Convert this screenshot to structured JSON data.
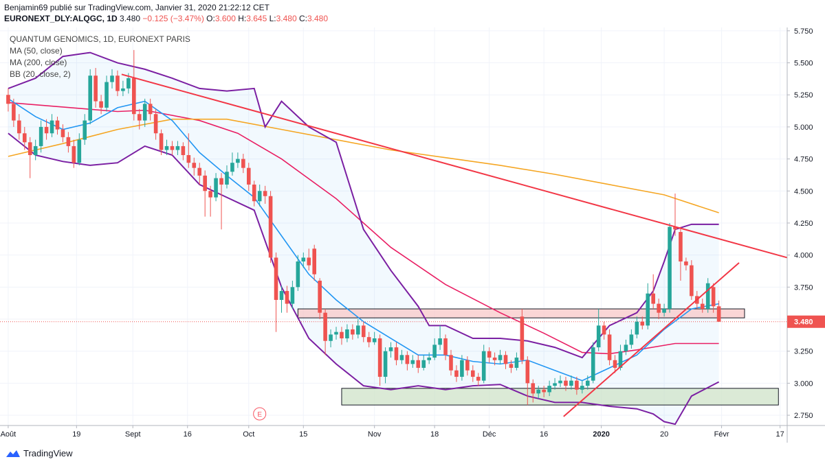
{
  "header": {
    "publisher": "Benjamin69 publié sur TradingView.com, Janvier 31, 2020 21:22:12 CET",
    "symbol": "EURONEXT_DLY:ALQGC, 1D",
    "last": "3.480",
    "change": "−0.125 (−3.47%)",
    "ohlc": [
      {
        "label": "O:",
        "value": "3.600"
      },
      {
        "label": "H:",
        "value": "3.645"
      },
      {
        "label": "L:",
        "value": "3.480"
      },
      {
        "label": "C:",
        "value": "3.480"
      }
    ]
  },
  "footer": {
    "brand": "TradingView"
  },
  "chart_data": {
    "type": "candlestick",
    "legend": [
      "QUANTUM GENOMICS, 1D, EURONEXT PARIS",
      "MA (50, close)",
      "MA (200, close)",
      "BB (20, close, 2)"
    ],
    "up_color": "#26a69a",
    "down_color": "#ef5350",
    "xlim": [
      -1.5,
      142.5
    ],
    "ylim": [
      2.67,
      5.776
    ],
    "xticks": [
      {
        "value": 0,
        "label": "Août"
      },
      {
        "value": 12.5,
        "label": "19"
      },
      {
        "value": 22.8,
        "label": "Sept"
      },
      {
        "value": 32.8,
        "label": "16"
      },
      {
        "value": 44,
        "label": "Oct"
      },
      {
        "value": 54,
        "label": "15"
      },
      {
        "value": 67,
        "label": "Nov"
      },
      {
        "value": 78,
        "label": "18"
      },
      {
        "value": 88,
        "label": "Déc"
      },
      {
        "value": 98,
        "label": "16"
      },
      {
        "value": 108.5,
        "label": "2020"
      },
      {
        "value": 120,
        "label": "20"
      },
      {
        "value": 130.5,
        "label": "Févr"
      },
      {
        "value": 141.2,
        "label": "17"
      }
    ],
    "yticks": [
      {
        "value": 2.75,
        "label": "2.750"
      },
      {
        "value": 3,
        "label": "3.000"
      },
      {
        "value": 3.25,
        "label": "3.250"
      },
      {
        "value": 3.5,
        "label": "3.500"
      },
      {
        "value": 3.75,
        "label": "3.750"
      },
      {
        "value": 4,
        "label": "4.000"
      },
      {
        "value": 4.25,
        "label": "4.250"
      },
      {
        "value": 4.5,
        "label": "4.500"
      },
      {
        "value": 4.75,
        "label": "4.750"
      },
      {
        "value": 5,
        "label": "5.000"
      },
      {
        "value": 5.25,
        "label": "5.250"
      },
      {
        "value": 5.5,
        "label": "5.500"
      },
      {
        "value": 5.75,
        "label": "5.750"
      }
    ],
    "grid": true,
    "last_price": {
      "value": 3.48,
      "label": "3.480"
    },
    "earnings_marker": {
      "x": 46,
      "label": "E"
    },
    "ohlc": [
      [
        5.25,
        5.3,
        5.12,
        5.18
      ],
      [
        5.18,
        5.22,
        5.0,
        5.05
      ],
      [
        5.05,
        5.1,
        4.9,
        4.95
      ],
      [
        4.95,
        5.0,
        4.82,
        4.88
      ],
      [
        4.88,
        4.92,
        4.6,
        4.78
      ],
      [
        4.78,
        4.9,
        4.74,
        4.85
      ],
      [
        4.85,
        5.05,
        4.8,
        5.0
      ],
      [
        5.0,
        5.06,
        4.9,
        4.95
      ],
      [
        4.95,
        5.1,
        4.92,
        5.05
      ],
      [
        5.05,
        5.08,
        4.94,
        4.98
      ],
      [
        4.98,
        5.02,
        4.88,
        4.92
      ],
      [
        4.92,
        4.96,
        4.8,
        4.85
      ],
      [
        4.85,
        4.9,
        4.68,
        4.72
      ],
      [
        4.72,
        4.95,
        4.7,
        4.9
      ],
      [
        4.9,
        5.1,
        4.86,
        5.05
      ],
      [
        5.05,
        5.45,
        5.02,
        5.4
      ],
      [
        5.4,
        5.46,
        5.15,
        5.2
      ],
      [
        5.2,
        5.25,
        5.1,
        5.15
      ],
      [
        5.15,
        5.4,
        5.12,
        5.35
      ],
      [
        5.35,
        5.45,
        5.3,
        5.4
      ],
      [
        5.4,
        5.44,
        5.24,
        5.28
      ],
      [
        5.28,
        5.36,
        5.24,
        5.3
      ],
      [
        5.3,
        5.42,
        5.26,
        5.38
      ],
      [
        5.38,
        5.6,
        5.05,
        5.1
      ],
      [
        5.1,
        5.14,
        4.98,
        5.05
      ],
      [
        5.05,
        5.22,
        5.0,
        5.18
      ],
      [
        5.18,
        5.22,
        5.05,
        5.1
      ],
      [
        5.1,
        5.14,
        4.9,
        4.95
      ],
      [
        4.95,
        4.98,
        4.78,
        4.82
      ],
      [
        4.82,
        4.9,
        4.78,
        4.85
      ],
      [
        4.85,
        4.89,
        4.78,
        4.82
      ],
      [
        4.82,
        4.89,
        4.78,
        4.85
      ],
      [
        4.85,
        4.88,
        4.74,
        4.78
      ],
      [
        4.78,
        4.95,
        4.68,
        4.72
      ],
      [
        4.72,
        4.76,
        4.62,
        4.68
      ],
      [
        4.68,
        4.72,
        4.55,
        4.62
      ],
      [
        4.62,
        4.66,
        4.3,
        4.5
      ],
      [
        4.5,
        4.54,
        4.3,
        4.45
      ],
      [
        4.45,
        4.64,
        4.42,
        4.6
      ],
      [
        4.6,
        4.64,
        4.2,
        4.55
      ],
      [
        4.55,
        4.7,
        4.52,
        4.65
      ],
      [
        4.65,
        4.8,
        4.62,
        4.72
      ],
      [
        4.72,
        4.8,
        4.68,
        4.75
      ],
      [
        4.75,
        4.79,
        4.64,
        4.68
      ],
      [
        4.68,
        4.72,
        4.5,
        4.55
      ],
      [
        4.55,
        4.58,
        4.38,
        4.42
      ],
      [
        4.42,
        4.55,
        4.38,
        4.5
      ],
      [
        4.5,
        4.54,
        4.4,
        4.46
      ],
      [
        4.46,
        4.5,
        3.94,
        3.98
      ],
      [
        3.98,
        4.02,
        3.4,
        3.65
      ],
      [
        3.65,
        3.76,
        3.55,
        3.72
      ],
      [
        3.72,
        3.76,
        3.55,
        3.62
      ],
      [
        3.62,
        3.8,
        3.58,
        3.75
      ],
      [
        3.75,
        4.0,
        3.72,
        3.95
      ],
      [
        3.95,
        4.02,
        3.9,
        3.98
      ],
      [
        3.98,
        4.05,
        3.88,
        3.92
      ],
      [
        4.05,
        4.08,
        3.8,
        3.85
      ],
      [
        3.8,
        3.82,
        3.5,
        3.55
      ],
      [
        3.55,
        3.58,
        3.22,
        3.33
      ],
      [
        3.33,
        3.42,
        3.28,
        3.38
      ],
      [
        3.38,
        3.44,
        3.34,
        3.4
      ],
      [
        3.4,
        3.44,
        3.3,
        3.35
      ],
      [
        3.35,
        3.46,
        3.32,
        3.42
      ],
      [
        3.42,
        3.46,
        3.34,
        3.38
      ],
      [
        3.38,
        3.5,
        3.35,
        3.45
      ],
      [
        3.45,
        3.48,
        3.32,
        3.36
      ],
      [
        3.36,
        3.4,
        3.28,
        3.32
      ],
      [
        3.32,
        3.4,
        3.3,
        3.35
      ],
      [
        3.35,
        3.38,
        2.98,
        3.05
      ],
      [
        3.05,
        3.28,
        3.0,
        3.25
      ],
      [
        3.25,
        3.32,
        3.2,
        3.28
      ],
      [
        3.28,
        3.32,
        3.14,
        3.18
      ],
      [
        3.18,
        3.26,
        3.15,
        3.22
      ],
      [
        3.22,
        3.25,
        3.1,
        3.15
      ],
      [
        3.15,
        3.22,
        3.12,
        3.18
      ],
      [
        3.18,
        3.22,
        3.08,
        3.12
      ],
      [
        3.12,
        3.22,
        3.1,
        3.18
      ],
      [
        3.18,
        3.24,
        3.15,
        3.2
      ],
      [
        3.2,
        3.35,
        3.18,
        3.3
      ],
      [
        3.3,
        3.45,
        3.26,
        3.35
      ],
      [
        3.35,
        3.38,
        3.18,
        3.22
      ],
      [
        3.22,
        3.26,
        3.06,
        3.1
      ],
      [
        3.1,
        3.14,
        3.01,
        3.05
      ],
      [
        3.05,
        3.22,
        3.02,
        3.18
      ],
      [
        3.18,
        3.21,
        3.06,
        3.1
      ],
      [
        3.1,
        3.14,
        3.01,
        3.05
      ],
      [
        3.05,
        3.08,
        2.98,
        3.02
      ],
      [
        3.02,
        3.3,
        3.0,
        3.25
      ],
      [
        3.25,
        3.28,
        3.16,
        3.2
      ],
      [
        3.2,
        3.24,
        3.14,
        3.18
      ],
      [
        3.18,
        3.26,
        3.15,
        3.22
      ],
      [
        3.22,
        3.25,
        3.11,
        3.15
      ],
      [
        3.15,
        3.18,
        3.08,
        3.12
      ],
      [
        3.12,
        3.24,
        3.1,
        3.2
      ],
      [
        3.52,
        3.58,
        3.15,
        3.18
      ],
      [
        3.18,
        3.21,
        2.83,
        3.0
      ],
      [
        3.0,
        3.03,
        2.85,
        2.92
      ],
      [
        2.92,
        2.98,
        2.88,
        2.95
      ],
      [
        2.95,
        2.98,
        2.89,
        2.93
      ],
      [
        2.93,
        3.02,
        2.9,
        2.98
      ],
      [
        2.98,
        3.04,
        2.95,
        3.0
      ],
      [
        3.0,
        3.06,
        2.97,
        3.02
      ],
      [
        3.02,
        3.05,
        2.94,
        2.98
      ],
      [
        2.98,
        3.06,
        2.95,
        3.02
      ],
      [
        3.02,
        3.05,
        2.91,
        2.95
      ],
      [
        2.95,
        3.02,
        2.92,
        2.98
      ],
      [
        2.98,
        3.06,
        2.95,
        3.02
      ],
      [
        3.02,
        3.32,
        3.0,
        3.28
      ],
      [
        3.28,
        3.58,
        3.25,
        3.45
      ],
      [
        3.45,
        3.48,
        3.34,
        3.38
      ],
      [
        3.38,
        3.42,
        3.14,
        3.18
      ],
      [
        3.18,
        3.22,
        3.08,
        3.12
      ],
      [
        3.12,
        3.3,
        3.1,
        3.25
      ],
      [
        3.25,
        3.34,
        3.22,
        3.3
      ],
      [
        3.3,
        3.42,
        3.27,
        3.38
      ],
      [
        3.38,
        3.52,
        3.35,
        3.48
      ],
      [
        3.48,
        3.52,
        3.42,
        3.45
      ],
      [
        3.45,
        3.78,
        3.42,
        3.7
      ],
      [
        3.7,
        3.85,
        3.58,
        3.62
      ],
      [
        3.62,
        3.66,
        3.5,
        3.55
      ],
      [
        3.55,
        3.62,
        3.52,
        3.58
      ],
      [
        3.58,
        4.25,
        3.55,
        4.22
      ],
      [
        4.22,
        4.48,
        4.15,
        4.2
      ],
      [
        4.18,
        4.22,
        3.8,
        3.95
      ],
      [
        3.95,
        3.98,
        3.88,
        3.92
      ],
      [
        3.92,
        3.96,
        3.65,
        3.68
      ],
      [
        3.68,
        3.72,
        3.58,
        3.62
      ],
      [
        3.62,
        3.66,
        3.55,
        3.58
      ],
      [
        3.58,
        3.82,
        3.55,
        3.78
      ],
      [
        3.75,
        3.78,
        3.55,
        3.6
      ],
      [
        3.6,
        3.645,
        3.48,
        3.48
      ]
    ],
    "lines": [
      {
        "name": "MA (50, close)",
        "color": "#e91e63",
        "x": [
          0,
          20,
          25,
          35,
          42,
          50,
          60,
          70,
          80,
          90,
          98,
          105,
          110,
          115,
          122,
          130
        ],
        "values": [
          5.19,
          5.12,
          5.13,
          5.05,
          4.95,
          4.75,
          4.44,
          4.06,
          3.77,
          3.55,
          3.39,
          3.24,
          3.23,
          3.26,
          3.31,
          3.31
        ]
      },
      {
        "name": "MA (200, close)",
        "color": "#f5a623",
        "x": [
          0,
          10,
          20,
          30,
          40,
          50,
          60,
          70,
          80,
          90,
          100,
          110,
          120,
          130
        ],
        "values": [
          4.77,
          4.87,
          4.98,
          5.06,
          5.06,
          4.98,
          4.9,
          4.82,
          4.76,
          4.7,
          4.63,
          4.55,
          4.47,
          4.33
        ]
      },
      {
        "color": "#2196f3",
        "x": [
          0,
          5,
          10,
          15,
          20,
          25,
          30,
          35,
          40,
          45,
          50,
          55,
          60,
          65,
          70,
          75,
          80,
          85,
          90,
          95,
          100,
          105,
          110,
          115,
          120,
          125,
          130
        ],
        "values": [
          5.22,
          5.08,
          4.98,
          5.03,
          5.15,
          5.2,
          5.05,
          4.8,
          4.62,
          4.45,
          4.15,
          3.85,
          3.65,
          3.48,
          3.35,
          3.22,
          3.22,
          3.17,
          3.15,
          3.18,
          3.1,
          3.02,
          3.12,
          3.22,
          3.42,
          3.58,
          3.62
        ]
      },
      {
        "color": "#7b1fa2",
        "x": [
          0,
          5,
          10,
          15,
          20,
          25,
          30,
          35,
          40,
          45,
          47,
          50,
          55,
          60,
          65,
          70,
          75,
          77,
          80,
          85,
          90,
          95,
          100,
          105,
          110,
          115,
          118,
          120,
          122,
          125,
          130
        ],
        "values": [
          5.3,
          5.38,
          5.55,
          5.58,
          5.5,
          5.45,
          5.38,
          5.3,
          5.28,
          5.3,
          5.0,
          5.2,
          5.0,
          4.88,
          4.2,
          3.88,
          3.6,
          3.45,
          3.45,
          3.35,
          3.35,
          3.33,
          3.28,
          3.2,
          3.45,
          3.55,
          3.72,
          3.95,
          4.2,
          4.24,
          4.24
        ]
      },
      {
        "color": "#7b1fa2",
        "x": [
          0,
          5,
          10,
          15,
          20,
          25,
          30,
          35,
          40,
          45,
          50,
          55,
          60,
          65,
          70,
          75,
          80,
          85,
          90,
          95,
          100,
          105,
          110,
          115,
          118,
          120,
          122,
          125,
          130
        ],
        "values": [
          4.95,
          4.78,
          4.73,
          4.7,
          4.72,
          4.85,
          4.78,
          4.55,
          4.45,
          4.35,
          3.75,
          3.35,
          3.15,
          2.98,
          2.95,
          2.98,
          2.95,
          2.98,
          2.99,
          2.9,
          2.85,
          2.85,
          2.82,
          2.8,
          2.76,
          2.7,
          2.68,
          2.9,
          3.01
        ]
      }
    ],
    "trendlines": [
      {
        "color": "#f23645",
        "x": [
          20.75,
          142.5
        ],
        "values": [
          5.41,
          3.98
        ]
      },
      {
        "color": "#f23645",
        "x": [
          101.6,
          133.7
        ],
        "values": [
          2.74,
          3.94
        ]
      }
    ],
    "zones": [
      {
        "color": "#f8c8c8",
        "x": [
          53,
          134.7
        ],
        "values": [
          3.58,
          3.51
        ]
      },
      {
        "color": "#cfe3c8",
        "x": [
          61,
          140.9
        ],
        "values": [
          2.96,
          2.83
        ]
      }
    ]
  }
}
